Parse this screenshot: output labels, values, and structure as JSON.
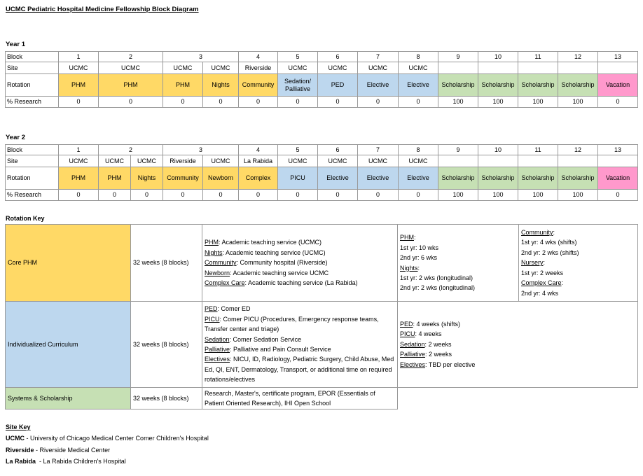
{
  "header": {
    "title": "UCMC Pediatric Hospital Medicine Fellowship Block Diagram"
  },
  "year1": {
    "heading": "Year 1",
    "row_labels": [
      "Block",
      "Site",
      "Rotation",
      "% Research"
    ],
    "blocks": [
      1,
      2,
      3,
      4,
      5,
      6,
      7,
      8,
      9,
      10,
      11,
      12,
      13
    ],
    "sites": [
      "UCMC",
      "UCMC",
      "UCMC",
      "UCMC",
      "Riverside",
      "UCMC",
      "UCMC",
      "UCMC",
      "UCMC"
    ],
    "rotations": [
      "PHM",
      "PHM",
      "PHM",
      "Nights",
      "Community",
      "Sedation/ Palliative",
      "PED",
      "Elective",
      "Elective",
      "Scholarship",
      "Scholarship",
      "Scholarship",
      "Scholarship",
      "Vacation"
    ],
    "research": [
      0,
      0,
      0,
      0,
      0,
      0,
      0,
      0,
      0,
      100,
      100,
      100,
      100,
      0
    ]
  },
  "year2": {
    "heading": "Year 2",
    "row_labels": [
      "Block",
      "Site",
      "Rotation",
      "% Research"
    ],
    "blocks": [
      1,
      2,
      3,
      4,
      5,
      6,
      7,
      8,
      9,
      10,
      11,
      12,
      13
    ],
    "sites": [
      "UCMC",
      "UCMC",
      "UCMC",
      "Riverside",
      "UCMC",
      "La Rabida",
      "UCMC",
      "UCMC",
      "UCMC",
      "UCMC"
    ],
    "rotations": [
      "PHM",
      "PHM",
      "Nights",
      "Community",
      "Newborn",
      "Complex",
      "PICU",
      "Elective",
      "Elective",
      "Elective",
      "Scholarship",
      "Scholarship",
      "Scholarship",
      "Scholarship",
      "Vacation"
    ],
    "research": [
      0,
      0,
      0,
      0,
      0,
      0,
      0,
      0,
      0,
      0,
      100,
      100,
      100,
      100,
      0
    ]
  },
  "rotation_key": {
    "heading": "Rotation Key",
    "rows": [
      {
        "name": "Core PHM",
        "duration": "32 weeks (8 blocks)",
        "descriptions": [
          {
            "term": "PHM",
            "text": ": Academic teaching service (UCMC)"
          },
          {
            "term": "Nights",
            "text": ": Academic teaching service (UCMC)"
          },
          {
            "term": "Community",
            "text": ": Community hospital (Riverside)"
          },
          {
            "term": "Newborn",
            "text": ": Academic teaching service  UCMC"
          },
          {
            "term": "Complex Care",
            "text": ":  Academic teaching service (La Rabida)"
          }
        ],
        "details": [
          [
            {
              "term": "PHM",
              "text": ":"
            },
            {
              "text": "1st yr: 10 wks"
            },
            {
              "text": "2nd yr: 6 wks"
            },
            {
              "term": "Nights",
              "text": ":"
            },
            {
              "text": "1st yr: 2 wks (longitudinal)"
            },
            {
              "text": "2nd yr: 2 wks (longitudinal)"
            }
          ],
          [
            {
              "term": "Community",
              "text": ":"
            },
            {
              "text": "1st yr: 4 wks (shifts)"
            },
            {
              "text": "2nd yr: 2 wks (shifts)"
            },
            {
              "term": "Nursery",
              "text": ":"
            },
            {
              "text": "1st yr: 2 weeks"
            },
            {
              "term": "Complex Care",
              "text": ":"
            },
            {
              "text": "2nd yr: 4 wks"
            }
          ]
        ]
      },
      {
        "name": "Individualized Curriculum",
        "duration": "32 weeks (8 blocks)",
        "descriptions": [
          {
            "term": "PED",
            "text": ": Comer ED"
          },
          {
            "term": "PICU",
            "text": ": Comer PICU (Procedures, Emergency response teams, Transfer center and triage)"
          },
          {
            "term": "Sedation",
            "text": ": Comer Sedation Service"
          },
          {
            "term": "Palliative",
            "text": ": Palliative and Pain Consult Service"
          },
          {
            "term": "Electives",
            "text": ": NICU, ID, Radiology, Pediatric Surgery, Child Abuse, Med Ed, QI, ENT, Dermatology, Transport, or additional time on required rotations/electives"
          }
        ],
        "details": [
          [
            {
              "term": "PED",
              "text": ": 4 weeks (shifts)"
            },
            {
              "term": "PICU",
              "text": ": 4 weeks"
            },
            {
              "term": "Sedation",
              "text": ": 2 weeks"
            },
            {
              "term": "Palliative",
              "text": ": 2 weeks"
            },
            {
              "term": "Electives",
              "text": ": TBD per elective"
            }
          ]
        ]
      },
      {
        "name": "Systems & Scholarship",
        "duration": "32 weeks (8 blocks)",
        "descriptions": [
          {
            "text": "Research, Master's, certificate program, EPOR (Essentials of Patient Oriented Research), IHI Open School"
          }
        ]
      }
    ]
  },
  "site_key": {
    "heading": "Site Key",
    "entries": [
      {
        "abbr": "UCMC",
        "text": " - University of Chicago Medical Center Comer Children's Hospital"
      },
      {
        "abbr": "Riverside",
        "text": " - Riverside Medical Center"
      },
      {
        "abbr": "La Rabida",
        "text": "  - La Rabida Children's Hospital"
      }
    ]
  }
}
